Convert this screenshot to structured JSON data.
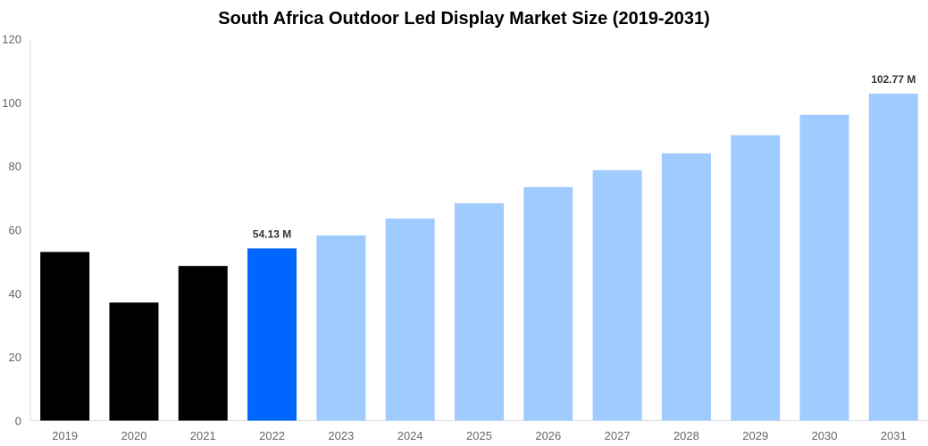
{
  "chart_data": {
    "type": "bar",
    "title": "South Africa Outdoor Led Display Market Size (2019-2031)",
    "xlabel": "",
    "ylabel": "",
    "ylim": [
      0,
      120
    ],
    "yticks": [
      0,
      20,
      40,
      60,
      80,
      100,
      120
    ],
    "grid": false,
    "categories": [
      "2019",
      "2020",
      "2021",
      "2022",
      "2023",
      "2024",
      "2025",
      "2026",
      "2027",
      "2028",
      "2029",
      "2030",
      "2031"
    ],
    "values": [
      53.0,
      37.1,
      48.6,
      54.13,
      58.2,
      63.5,
      68.3,
      73.4,
      78.7,
      84.0,
      89.7,
      96.1,
      102.77
    ],
    "colors": [
      "#000000",
      "#000000",
      "#000000",
      "#0066ff",
      "#a0cbff",
      "#a0cbff",
      "#a0cbff",
      "#a0cbff",
      "#a0cbff",
      "#a0cbff",
      "#a0cbff",
      "#a0cbff",
      "#a0cbff"
    ],
    "data_labels": [
      {
        "category": "2022",
        "text": "54.13 M"
      },
      {
        "category": "2031",
        "text": "102.77 M"
      }
    ]
  }
}
